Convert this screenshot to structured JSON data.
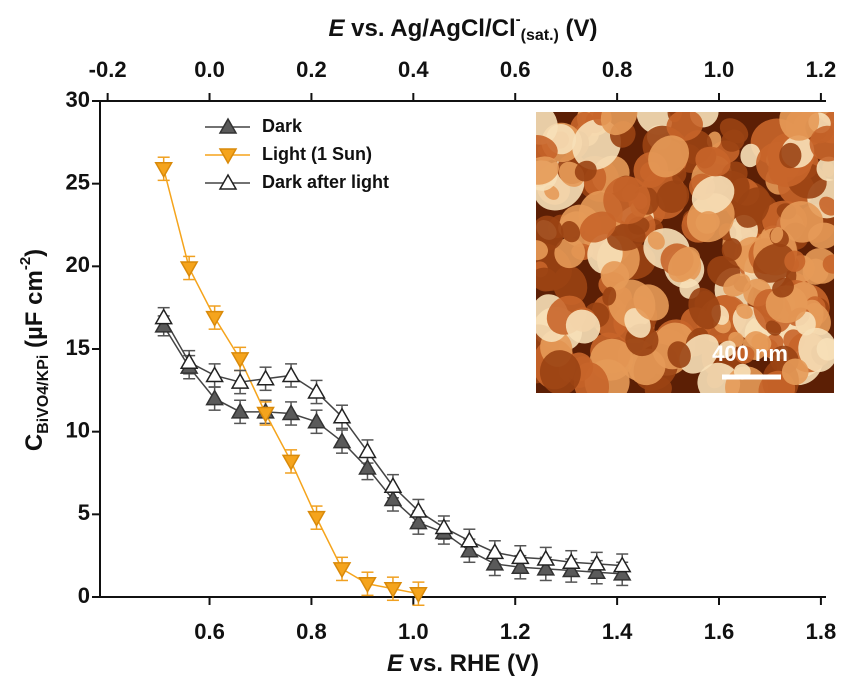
{
  "chart_data": {
    "type": "line",
    "xlabel": {
      "italic": "E",
      "text": " vs. RHE (V)"
    },
    "x2label": {
      "italic": "E",
      "text": " vs. Ag/AgCl/Cl",
      "sup": "-",
      "sub": "(sat.)",
      "unit": " (V)"
    },
    "ylabel": {
      "main": "C",
      "sub": "BiVO4/KPi",
      "text": "  (µF cm",
      "sup": "-2",
      "end": ")"
    },
    "x": [
      0.51,
      0.56,
      0.61,
      0.66,
      0.71,
      0.76,
      0.81,
      0.86,
      0.91,
      0.96,
      1.01,
      1.06,
      1.11,
      1.16,
      1.21,
      1.26,
      1.31,
      1.36,
      1.41
    ],
    "xlim": [
      0.385,
      1.81
    ],
    "xticks": [
      0.6,
      0.8,
      {
        "value": 1,
        "label": "1.0"
      },
      1.2,
      1.4,
      1.6,
      1.8
    ],
    "x2lim": [
      -0.215,
      1.21
    ],
    "x2ticks": [
      -0.2,
      {
        "value": 0,
        "label": "0.0"
      },
      0.2,
      0.4,
      0.6,
      0.8,
      {
        "value": 1,
        "label": "1.0"
      },
      1.2
    ],
    "ylim": [
      0,
      30
    ],
    "yticks": [
      0,
      5,
      10,
      15,
      20,
      25,
      30
    ],
    "series": [
      {
        "name": "Dark",
        "color": "#5a5a5a",
        "marker": "up",
        "filled": true,
        "values": [
          16.4,
          13.9,
          12.0,
          11.2,
          11.2,
          11.1,
          10.6,
          9.4,
          7.8,
          5.9,
          4.5,
          3.9,
          2.8,
          2.0,
          1.8,
          1.7,
          1.6,
          1.5,
          1.4
        ],
        "errors": [
          0.6,
          0.7,
          0.7,
          0.7,
          0.7,
          0.7,
          0.7,
          0.7,
          0.7,
          0.7,
          0.7,
          0.7,
          0.7,
          0.7,
          0.7,
          0.7,
          0.7,
          0.7,
          0.7
        ]
      },
      {
        "name": "Light (1 Sun)",
        "color": "#f5a41c",
        "marker": "down",
        "filled": true,
        "values": [
          25.9,
          19.9,
          16.9,
          14.4,
          11.1,
          8.2,
          4.8,
          1.7,
          0.8,
          0.5,
          0.2,
          null,
          null,
          null,
          null,
          null,
          null,
          null,
          null
        ],
        "errors": [
          0.7,
          0.7,
          0.7,
          0.7,
          0.7,
          0.7,
          0.7,
          0.7,
          0.7,
          0.7,
          0.7,
          null,
          null,
          null,
          null,
          null,
          null,
          null,
          null
        ]
      },
      {
        "name": "Dark after light",
        "color": "#222222",
        "marker": "up",
        "filled": false,
        "values": [
          16.9,
          14.2,
          13.4,
          13.0,
          13.2,
          13.4,
          12.4,
          10.9,
          8.8,
          6.7,
          5.2,
          4.2,
          3.4,
          2.7,
          2.4,
          2.3,
          2.1,
          2.0,
          1.9
        ],
        "errors": [
          0.6,
          0.7,
          0.7,
          0.7,
          0.7,
          0.7,
          0.7,
          0.7,
          0.7,
          0.7,
          0.7,
          0.7,
          0.7,
          0.7,
          0.7,
          0.7,
          0.7,
          0.7,
          0.7
        ]
      }
    ],
    "inset_label": "400 nm"
  }
}
